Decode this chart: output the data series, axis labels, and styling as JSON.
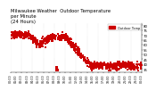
{
  "title": "Milwaukee Weather  Outdoor Temperature\nper Minute\n(24 Hours)",
  "title_fontsize": 3.8,
  "dot_color": "#cc0000",
  "dot_size": 0.8,
  "legend_label": "Outdoor Temp",
  "legend_color": "#cc0000",
  "background_color": "#ffffff",
  "ylim": [
    32,
    82
  ],
  "yticks": [
    35,
    40,
    45,
    50,
    55,
    60,
    65,
    70,
    75,
    80
  ],
  "ytick_labels": [
    "35",
    "40",
    "45",
    "50",
    "55",
    "60",
    "65",
    "70",
    "75",
    "80"
  ],
  "ytick_fontsize": 2.8,
  "xtick_fontsize": 2.3,
  "grid_color": "#bbbbbb",
  "num_points": 1440,
  "vgrid_positions": [
    0,
    0.0833,
    0.1667,
    0.25,
    0.3333,
    0.4167,
    0.5,
    0.5833,
    0.6667,
    0.75,
    0.8333,
    0.9167,
    1.0
  ]
}
